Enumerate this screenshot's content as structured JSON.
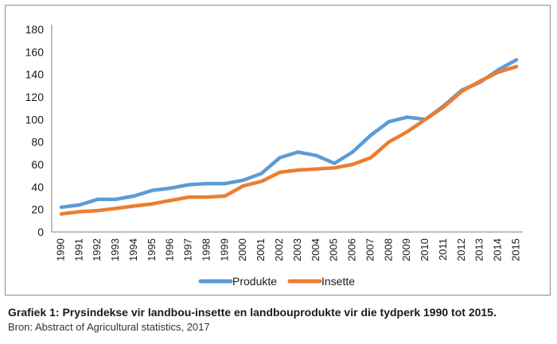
{
  "chart_data": {
    "type": "line",
    "x": [
      "1990",
      "1991",
      "1992",
      "1993",
      "1994",
      "1995",
      "1996",
      "1997",
      "1998",
      "1999",
      "2000",
      "2001",
      "2002",
      "2003",
      "2004",
      "2005",
      "2006",
      "2007",
      "2008",
      "2009",
      "2010",
      "2011",
      "2012",
      "2013",
      "2014",
      "2015"
    ],
    "series": [
      {
        "name": "Produkte",
        "color": "#5b9bd5",
        "values": [
          22,
          24,
          29,
          29,
          32,
          37,
          39,
          42,
          43,
          43,
          46,
          52,
          66,
          71,
          68,
          61,
          71,
          86,
          98,
          102,
          100,
          112,
          126,
          133,
          144,
          153
        ]
      },
      {
        "name": "Insette",
        "color": "#ed7d31",
        "values": [
          16,
          18,
          19,
          21,
          23,
          25,
          28,
          31,
          31,
          32,
          41,
          45,
          53,
          55,
          56,
          57,
          60,
          66,
          80,
          89,
          100,
          111,
          125,
          134,
          142,
          147
        ]
      }
    ],
    "ylim": [
      0,
      180
    ],
    "yticks": [
      0,
      20,
      40,
      60,
      80,
      100,
      120,
      140,
      160,
      180
    ],
    "grid": false,
    "legend": "bottom-center"
  },
  "caption": "Grafiek 1: Prysindekse vir landbou-insette en landbouprodukte vir die tydperk 1990 tot 2015.",
  "source": "Bron: Abstract of Agricultural statistics, 2017"
}
